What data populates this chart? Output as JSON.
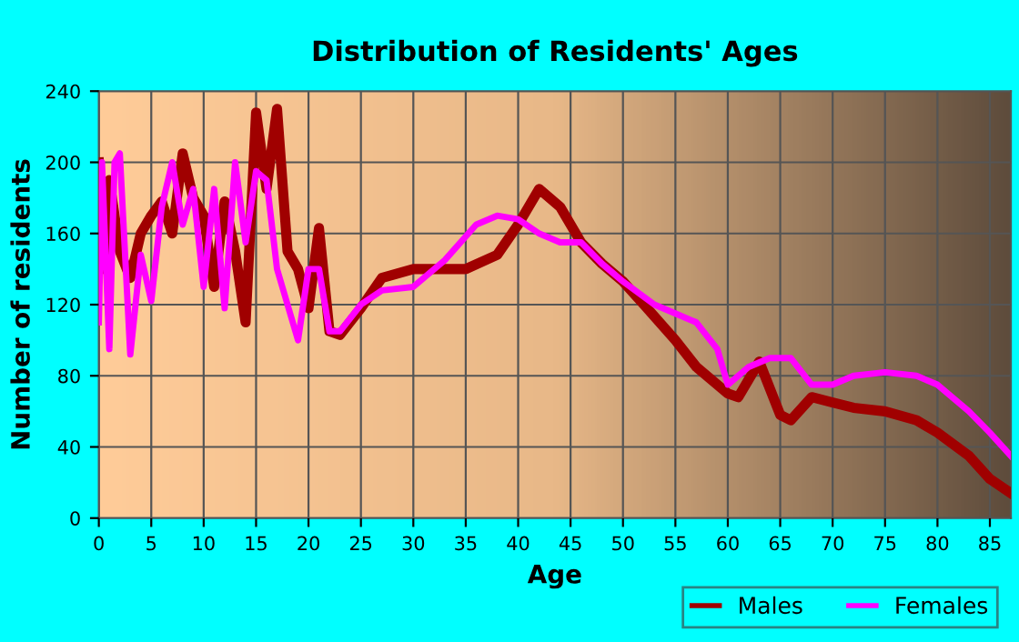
{
  "chart_data": {
    "type": "line",
    "title": "Distribution of Residents' Ages",
    "xlabel": "Age",
    "ylabel": "Number of residents",
    "xlim": [
      0,
      87
    ],
    "xticks": [
      0,
      5,
      10,
      15,
      20,
      25,
      30,
      35,
      40,
      45,
      50,
      55,
      60,
      65,
      70,
      75,
      80,
      85
    ],
    "ylim": [
      0,
      240
    ],
    "yticks": [
      0,
      40,
      80,
      120,
      160,
      200,
      240
    ],
    "grid": true,
    "legend": "bottom right",
    "series": [
      {
        "name": "Males",
        "color": "#a00000",
        "x": [
          0,
          0.5,
          1,
          2,
          3,
          4,
          5,
          6,
          7,
          8,
          9,
          10,
          11,
          12,
          13,
          14,
          15,
          16,
          17,
          18,
          19,
          20,
          21,
          22,
          23,
          25,
          27,
          30,
          35,
          38,
          40,
          42,
          44,
          46,
          48,
          50,
          52,
          55,
          57,
          60,
          61,
          63,
          65,
          66,
          68,
          70,
          72,
          75,
          78,
          80,
          83,
          85,
          87
        ],
        "values": [
          200,
          140,
          190,
          150,
          135,
          160,
          170,
          178,
          160,
          205,
          180,
          170,
          130,
          178,
          150,
          110,
          228,
          185,
          230,
          150,
          140,
          118,
          163,
          105,
          103,
          118,
          135,
          140,
          140,
          148,
          165,
          185,
          175,
          155,
          143,
          133,
          120,
          100,
          85,
          70,
          68,
          88,
          58,
          55,
          68,
          65,
          62,
          60,
          55,
          48,
          35,
          22,
          14
        ]
      },
      {
        "name": "Females",
        "color": "#ff00ff",
        "x": [
          0,
          0.3,
          1,
          1.5,
          2,
          3,
          4,
          5,
          6,
          7,
          8,
          9,
          10,
          11,
          12,
          13,
          14,
          15,
          16,
          17,
          19,
          20,
          21,
          22,
          23,
          25,
          27,
          30,
          33,
          36,
          38,
          40,
          42,
          44,
          46,
          48,
          50,
          53,
          55,
          57,
          59,
          60,
          62,
          64,
          66,
          68,
          70,
          72,
          75,
          78,
          80,
          83,
          85,
          87
        ],
        "values": [
          110,
          200,
          95,
          200,
          205,
          92,
          148,
          122,
          175,
          200,
          165,
          185,
          130,
          185,
          118,
          200,
          155,
          195,
          190,
          140,
          100,
          140,
          140,
          105,
          105,
          120,
          128,
          130,
          145,
          165,
          170,
          168,
          160,
          155,
          155,
          143,
          133,
          120,
          115,
          110,
          95,
          75,
          85,
          90,
          90,
          75,
          75,
          80,
          82,
          80,
          75,
          60,
          48,
          35
        ]
      }
    ]
  }
}
